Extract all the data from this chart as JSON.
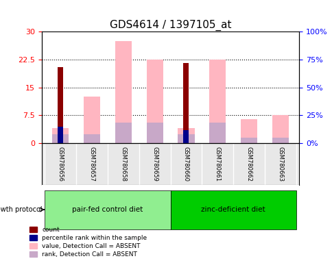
{
  "title": "GDS4614 / 1397105_at",
  "samples": [
    "GSM780656",
    "GSM780657",
    "GSM780658",
    "GSM780659",
    "GSM780660",
    "GSM780661",
    "GSM780662",
    "GSM780663"
  ],
  "count_values": [
    20.5,
    0,
    0,
    0,
    21.5,
    0,
    0,
    0
  ],
  "percentile_rank_values": [
    4.5,
    0,
    0,
    0,
    3.5,
    0,
    0,
    0
  ],
  "absent_value_values": [
    4.0,
    12.5,
    27.5,
    22.5,
    4.0,
    22.5,
    6.5,
    7.5
  ],
  "absent_rank_values": [
    2.5,
    2.5,
    5.5,
    5.5,
    2.5,
    5.5,
    1.5,
    1.5
  ],
  "groups": [
    {
      "label": "pair-fed control diet",
      "start": 0,
      "end": 3,
      "color": "#90EE90"
    },
    {
      "label": "zinc-deficient diet",
      "start": 4,
      "end": 7,
      "color": "#00CC00"
    }
  ],
  "ylim_left": [
    0,
    30
  ],
  "ylim_right": [
    0,
    100
  ],
  "yticks_left": [
    0,
    7.5,
    15,
    22.5,
    30
  ],
  "yticks_right": [
    0,
    25,
    50,
    75,
    100
  ],
  "ytick_labels_left": [
    "0",
    "7.5",
    "15",
    "22.5",
    "30"
  ],
  "ytick_labels_right": [
    "0%",
    "25%",
    "50%",
    "75%",
    "100%"
  ],
  "bar_width": 0.35,
  "count_color": "#8B0000",
  "percentile_color": "#00008B",
  "absent_value_color": "#FFB6C1",
  "absent_rank_color": "#C8A8C8",
  "grid_color": "black",
  "bg_color": "#E8E8E8",
  "legend_items": [
    {
      "label": "count",
      "color": "#8B0000"
    },
    {
      "label": "percentile rank within the sample",
      "color": "#00008B"
    },
    {
      "label": "value, Detection Call = ABSENT",
      "color": "#FFB6C1"
    },
    {
      "label": "rank, Detection Call = ABSENT",
      "color": "#C8A8C8"
    }
  ]
}
